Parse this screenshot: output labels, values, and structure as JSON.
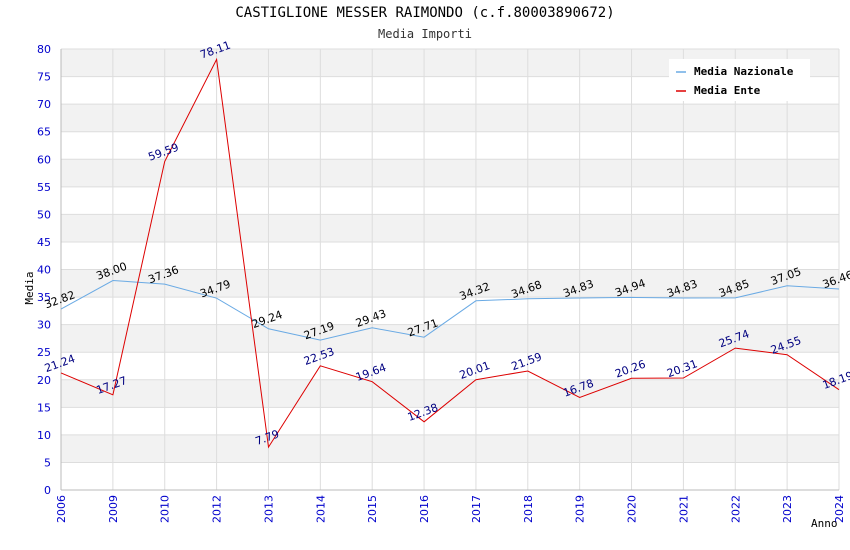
{
  "chart_data": {
    "type": "line",
    "title": "CASTIGLIONE MESSER RAIMONDO (c.f.80003890672)",
    "subtitle": "Media Importi",
    "xlabel": "Anno",
    "ylabel": "Media",
    "categories": [
      "2006",
      "2009",
      "2010",
      "2012",
      "2013",
      "2014",
      "2015",
      "2016",
      "2017",
      "2018",
      "2019",
      "2020",
      "2021",
      "2022",
      "2023",
      "2024"
    ],
    "ylim": [
      0,
      80
    ],
    "yticks": [
      0,
      5,
      10,
      15,
      20,
      25,
      30,
      35,
      40,
      45,
      50,
      55,
      60,
      65,
      70,
      75,
      80
    ],
    "grid": true,
    "legend_position": "top-right",
    "series": [
      {
        "name": "Media Nazionale",
        "color": "#6aaae4",
        "values": [
          32.82,
          38.0,
          37.36,
          34.79,
          29.24,
          27.19,
          29.43,
          27.71,
          34.32,
          34.68,
          34.83,
          34.94,
          34.83,
          34.85,
          37.05,
          36.46
        ],
        "labels": [
          "32.82",
          "38.00",
          "37.36",
          "34.79",
          "29.24",
          "27.19",
          "29.43",
          "27.71",
          "34.32",
          "34.68",
          "34.83",
          "34.94",
          "34.83",
          "34.85",
          "37.05",
          "36.46"
        ]
      },
      {
        "name": "Media Ente",
        "color": "#dd0000",
        "values": [
          21.24,
          17.27,
          59.59,
          78.11,
          7.79,
          22.53,
          19.64,
          12.38,
          20.01,
          21.59,
          16.78,
          20.26,
          20.31,
          25.74,
          24.55,
          18.19
        ],
        "labels": [
          "21.24",
          "17.27",
          "59.59",
          "78.11",
          "7.79",
          "22.53",
          "19.64",
          "12.38",
          "20.01",
          "21.59",
          "16.78",
          "20.26",
          "20.31",
          "25.74",
          "24.55",
          "18.19"
        ]
      }
    ]
  }
}
